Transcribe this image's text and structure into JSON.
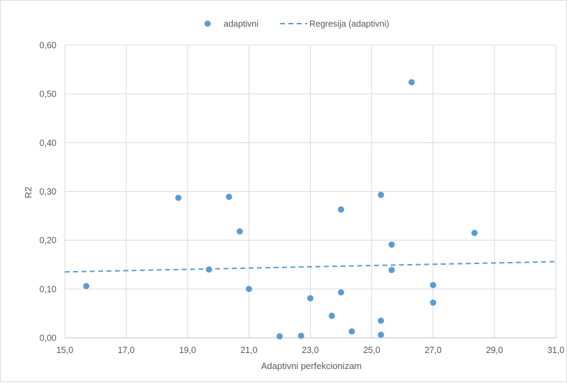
{
  "chart_data": {
    "type": "scatter",
    "title": "",
    "xlabel": "Adaptivni perfekcionizam",
    "ylabel": "R2",
    "xlim": [
      15.0,
      31.0
    ],
    "ylim": [
      0.0,
      0.6
    ],
    "x_ticks": [
      "15,0",
      "17,0",
      "19,0",
      "21,0",
      "23,0",
      "25,0",
      "27,0",
      "29,0",
      "31,0"
    ],
    "y_ticks": [
      "0,00",
      "0,10",
      "0,20",
      "0,30",
      "0,40",
      "0,50",
      "0,60"
    ],
    "grid": true,
    "legend_position": "top",
    "series": [
      {
        "name": "adaptivni",
        "color": "#5b9bd5",
        "points": [
          {
            "x": 15.7,
            "y": 0.106
          },
          {
            "x": 18.7,
            "y": 0.287
          },
          {
            "x": 19.7,
            "y": 0.14
          },
          {
            "x": 20.35,
            "y": 0.289
          },
          {
            "x": 20.7,
            "y": 0.218
          },
          {
            "x": 21.0,
            "y": 0.1
          },
          {
            "x": 22.0,
            "y": 0.003
          },
          {
            "x": 22.7,
            "y": 0.004
          },
          {
            "x": 23.0,
            "y": 0.081
          },
          {
            "x": 23.7,
            "y": 0.045
          },
          {
            "x": 24.0,
            "y": 0.263
          },
          {
            "x": 24.0,
            "y": 0.093
          },
          {
            "x": 24.35,
            "y": 0.013
          },
          {
            "x": 25.3,
            "y": 0.293
          },
          {
            "x": 25.3,
            "y": 0.035
          },
          {
            "x": 25.3,
            "y": 0.006
          },
          {
            "x": 25.65,
            "y": 0.191
          },
          {
            "x": 25.65,
            "y": 0.139
          },
          {
            "x": 26.3,
            "y": 0.524
          },
          {
            "x": 27.0,
            "y": 0.108
          },
          {
            "x": 27.0,
            "y": 0.072
          },
          {
            "x": 28.35,
            "y": 0.215
          }
        ]
      }
    ],
    "trendline": {
      "name": "Regresija (adaptivni)",
      "color": "#5b9bd5",
      "style": "dashed",
      "points": [
        {
          "x": 15.0,
          "y": 0.135
        },
        {
          "x": 31.0,
          "y": 0.156
        }
      ]
    }
  }
}
